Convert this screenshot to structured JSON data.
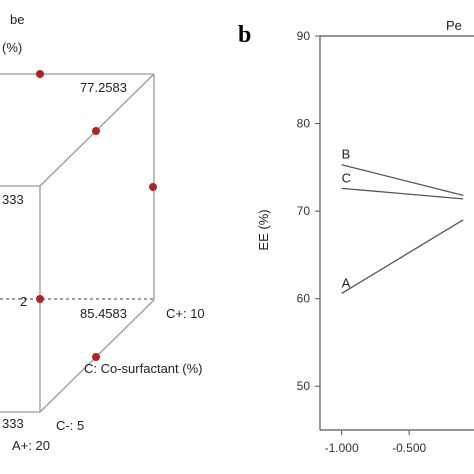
{
  "chart_data": [
    {
      "type": "cube",
      "title_fragment_1": "be",
      "title_fragment_2": "(%)",
      "corner_values": [
        {
          "label": "77.2583"
        },
        {
          "label": "85.4583"
        },
        {
          "label": "2"
        },
        {
          "label": "333"
        },
        {
          "label": "333"
        }
      ],
      "axis_labels": {
        "c_plus": "C+: 10",
        "c_minus": "C-: 5",
        "a_plus": "A+: 20",
        "c_axis": "C: Co-surfactant (%)"
      },
      "point_color": "#b22222",
      "edge_color": "#9a9a9a"
    },
    {
      "type": "line",
      "panel_letter": "b",
      "title_fragment": "Pe",
      "ylabel": "EE (%)",
      "ylim": [
        45,
        90
      ],
      "y_ticks": [
        50,
        60,
        70,
        80,
        90
      ],
      "x_ticks": [
        -1.0,
        -0.5
      ],
      "x_tick_labels": [
        "-1.000",
        "-0.500"
      ],
      "xlim": [
        -1.16,
        -0.02
      ],
      "series": [
        {
          "name": "A",
          "x": [
            -1.0,
            -0.1
          ],
          "y": [
            60.6,
            69.0
          ]
        },
        {
          "name": "B",
          "x": [
            -1.0,
            -0.1
          ],
          "y": [
            75.3,
            71.8
          ]
        },
        {
          "name": "C",
          "x": [
            -1.0,
            -0.1
          ],
          "y": [
            72.6,
            71.4
          ]
        }
      ],
      "line_color": "#555555"
    }
  ]
}
